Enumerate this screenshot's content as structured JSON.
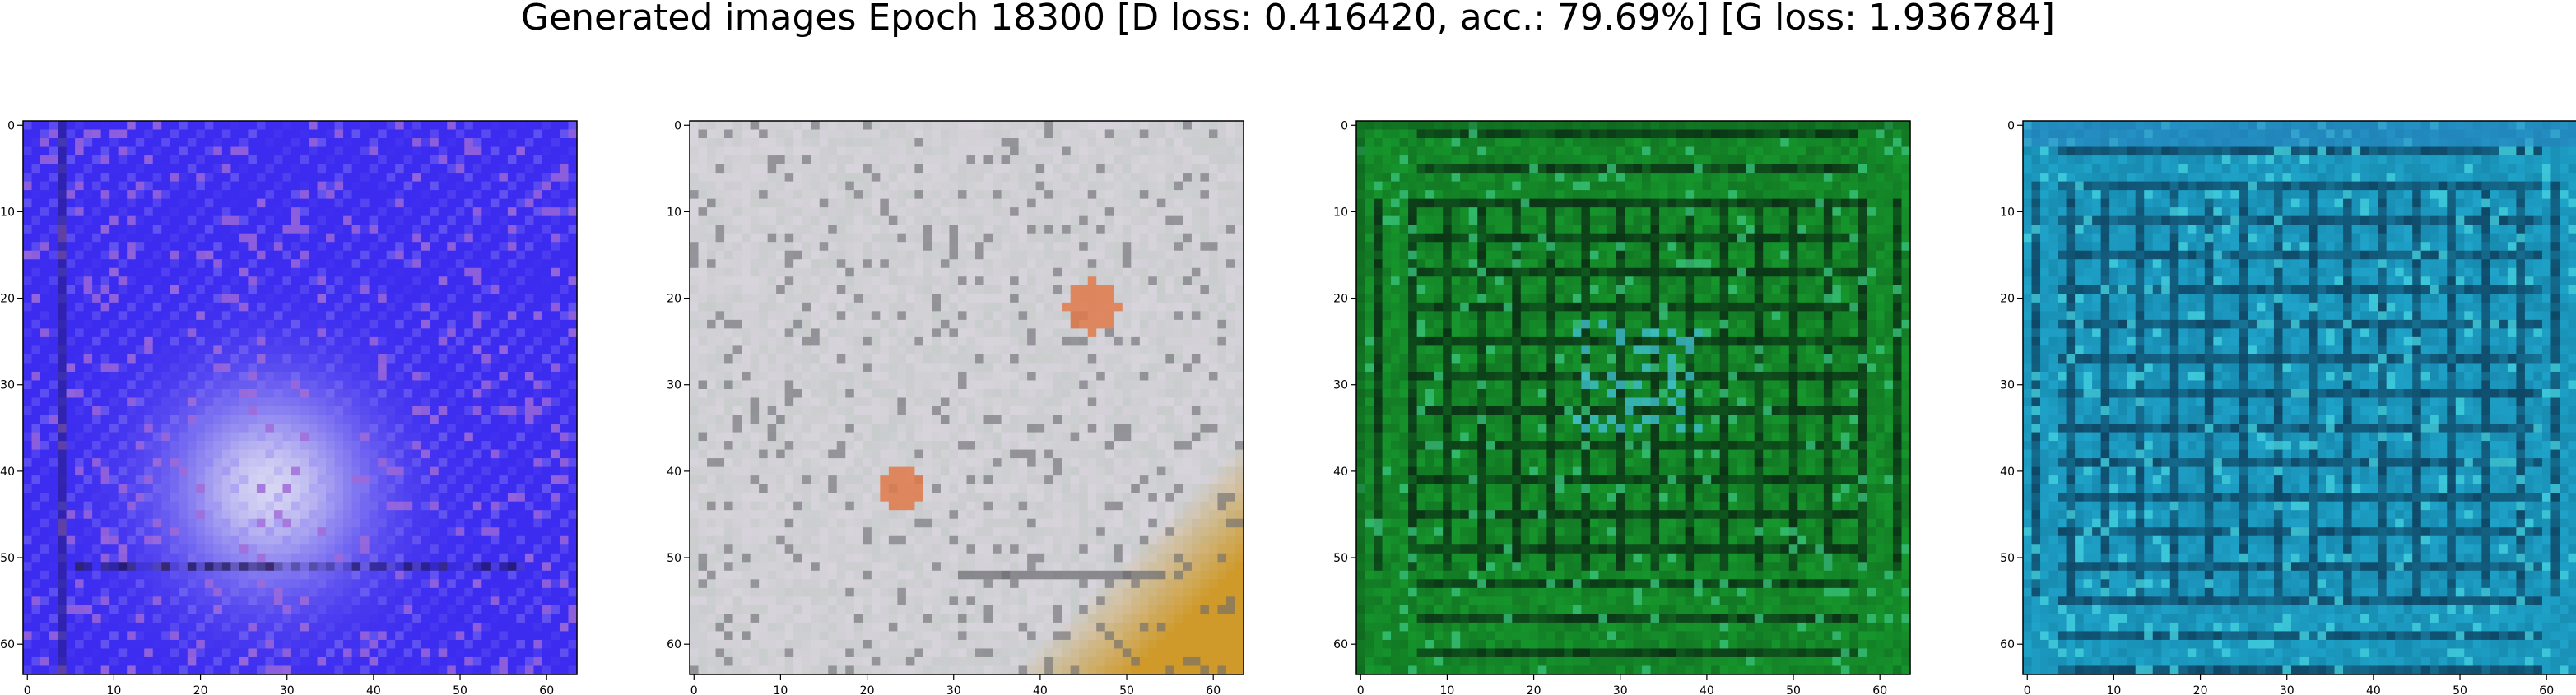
{
  "figure": {
    "title": "Generated images Epoch 18300 [D loss: 0.416420, acc.: 79.69%] [G loss: 1.936784]"
  },
  "axes": {
    "xticks": [
      "0",
      "10",
      "20",
      "30",
      "40",
      "50",
      "60"
    ],
    "yticks": [
      "0",
      "10",
      "20",
      "30",
      "40",
      "50",
      "60"
    ],
    "xlim": [
      -0.5,
      63.5
    ],
    "ylim": [
      63.5,
      -0.5
    ],
    "image_size": 64
  },
  "panels": [
    {
      "name": "sample-1",
      "dominant_colors": [
        "#3c2cf0",
        "#8a7cf2",
        "#e8e8f2",
        "#1c1450",
        "#a06ad8"
      ]
    },
    {
      "name": "sample-2",
      "dominant_colors": [
        "#d8d4dc",
        "#c9cccd",
        "#6a6a70",
        "#cf9a2a",
        "#e07a4a"
      ]
    },
    {
      "name": "sample-3",
      "dominant_colors": [
        "#16962c",
        "#0e5a1c",
        "#38c27a",
        "#3fbfcf",
        "#0a2a14"
      ]
    },
    {
      "name": "sample-4",
      "dominant_colors": [
        "#1fa3c9",
        "#0f6d92",
        "#43d0de",
        "#0d3a58",
        "#2a7fc0"
      ]
    }
  ]
}
